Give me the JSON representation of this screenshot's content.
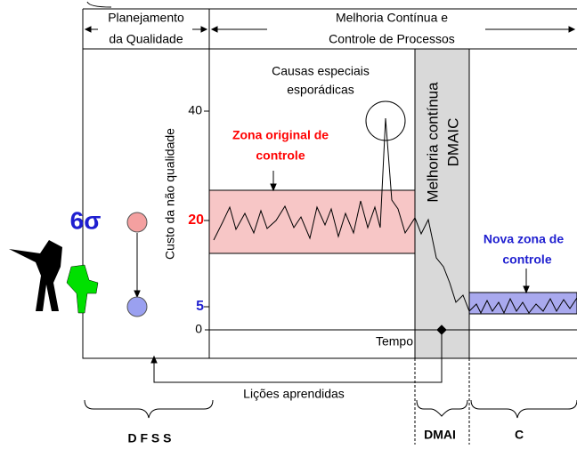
{
  "header": {
    "planning": [
      "Planejamento",
      "da Qualidade"
    ],
    "improvement": [
      "Melhoria Contínua e",
      "Controle de Processos"
    ]
  },
  "axis": {
    "label": "Custo da não qualidade",
    "ticks": [
      "40",
      "20",
      "5",
      "0"
    ],
    "x_label": "Tempo"
  },
  "annotations": {
    "special_causes": [
      "Causas especiais",
      "esporádicas"
    ],
    "original_zone": [
      "Zona original de",
      "controle"
    ],
    "dmaic": [
      "Melhoria contínua",
      "DMAIC"
    ],
    "new_zone": [
      "Nova zona de",
      "controle"
    ],
    "six_sigma": "6σ",
    "lessons": "Lições aprendidas"
  },
  "phases": {
    "dfss": "D F S S",
    "dmai": "DMAI",
    "c": "C"
  }
}
